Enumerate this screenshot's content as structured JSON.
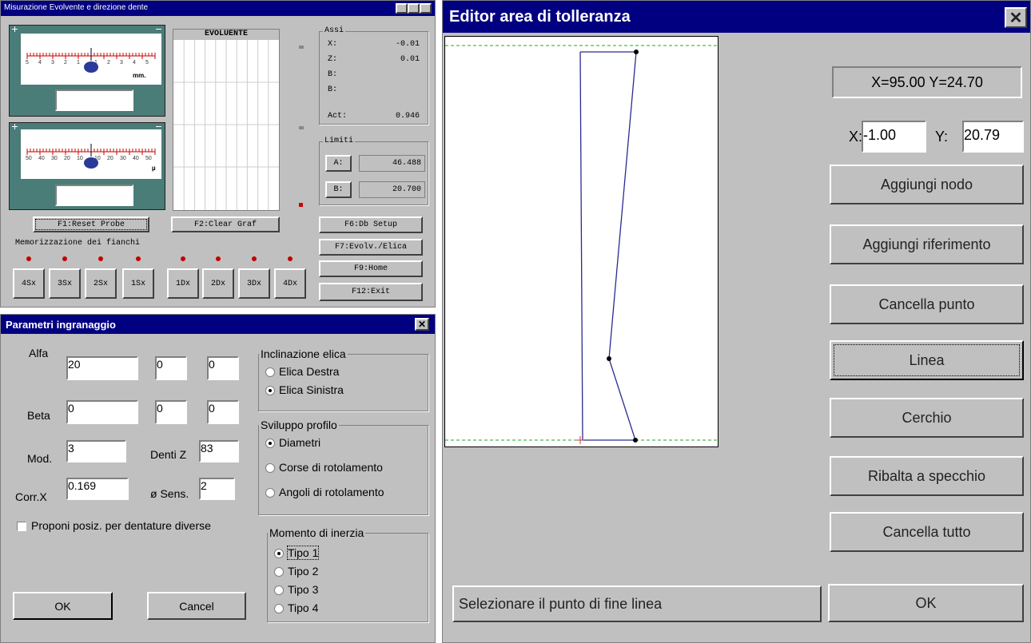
{
  "measure_window": {
    "title": "Misurazione Evolvente e direzione dente",
    "probe_1": {
      "scale_labels": [
        "5",
        "4",
        "3",
        "2",
        "1",
        "1",
        "2",
        "3",
        "4",
        "5"
      ],
      "unit": "mm."
    },
    "probe_2": {
      "scale_labels": [
        "50",
        "40",
        "30",
        "20",
        "10",
        "10",
        "20",
        "30",
        "40",
        "50"
      ],
      "unit": "µ"
    },
    "graph_title": "EVOLUENTE",
    "axes": {
      "title": "Assi",
      "rows": [
        [
          "X:",
          "-0.01"
        ],
        [
          "Z:",
          "0.01"
        ],
        [
          "B:",
          ""
        ],
        [
          "B:",
          ""
        ],
        [
          "Act:",
          "0.946"
        ]
      ]
    },
    "limits": {
      "title": "Limiti",
      "rows": [
        [
          "A:",
          "46.488"
        ],
        [
          "B:",
          "20.700"
        ]
      ]
    },
    "buttons": {
      "reset": "F1:Reset Probe",
      "clear": "F2:Clear Graf",
      "db": "F6:Db Setup",
      "evolv": "F7:Evolv./Elica",
      "home": "F9:Home",
      "exit": "F12:Exit"
    },
    "flanks_title": "Memorizzazione dei fianchi",
    "flanks": [
      "4Sx",
      "3Sx",
      "2Sx",
      "1Sx",
      "1Dx",
      "2Dx",
      "3Dx",
      "4Dx"
    ]
  },
  "params_dialog": {
    "title": "Parametri ingranaggio",
    "alfa": {
      "label": "Alfa",
      "values": [
        "20",
        "0",
        "0"
      ]
    },
    "beta": {
      "label": "Beta",
      "values": [
        "0",
        "0",
        "0"
      ]
    },
    "mod": {
      "label": "Mod.",
      "value": "3"
    },
    "denti": {
      "label": "Denti Z",
      "value": "83"
    },
    "corr": {
      "label": "Corr.X",
      "value": "0.169"
    },
    "sens": {
      "label": "ø Sens.",
      "value": "2"
    },
    "checkbox": "Proponi posiz. per dentature diverse",
    "helix": {
      "title": "Inclinazione elica",
      "options": [
        "Elica Destra",
        "Elica Sinistra"
      ]
    },
    "profile": {
      "title": "Sviluppo profilo",
      "options": [
        "Diametri",
        "Corse di rotolamento",
        "Angoli di rotolamento"
      ]
    },
    "inertia": {
      "title": "Momento di inerzia",
      "options": [
        "Tipo 1",
        "Tipo 2",
        "Tipo 3",
        "Tipo 4"
      ]
    },
    "ok": "OK",
    "cancel": "Cancel"
  },
  "editor": {
    "title": "Editor area di tolleranza",
    "coords": "X=95.00 Y=24.70",
    "x_label": "X:",
    "x_value": "-1.00",
    "y_label": "Y:",
    "y_value": "20.79",
    "buttons": [
      "Aggiungi nodo",
      "Aggiungi riferimento",
      "Cancella punto",
      "Linea",
      "Cerchio",
      "Ribalta a specchio",
      "Cancella tutto"
    ],
    "status": "Selezionare il punto di fine linea",
    "ok": "OK"
  }
}
